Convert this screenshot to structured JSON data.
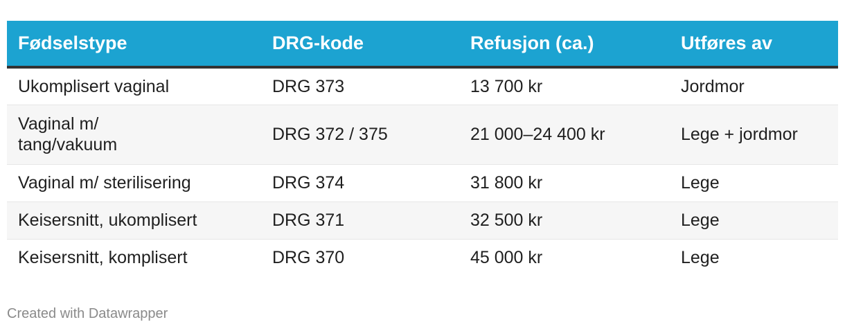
{
  "chart_data": {
    "type": "table",
    "columns": [
      "Fødselstype",
      "DRG-kode",
      "Refusjon (ca.)",
      "Utføres av"
    ],
    "rows": [
      [
        "Ukomplisert vaginal",
        "DRG 373",
        "13 700 kr",
        "Jordmor"
      ],
      [
        "Vaginal m/ tang/vakuum",
        "DRG 372 / 375",
        "21 000–24 400 kr",
        "Lege + jordmor"
      ],
      [
        "Vaginal m/ sterilisering",
        "DRG 374",
        "31 800 kr",
        "Lege"
      ],
      [
        "Keisersnitt, ukomplisert",
        "DRG 371",
        "32 500 kr",
        "Lege"
      ],
      [
        "Keisersnitt, komplisert",
        "DRG 370",
        "45 000 kr",
        "Lege"
      ]
    ]
  },
  "colors": {
    "header_background": "#1ca3d1",
    "header_text": "#ffffff",
    "header_rule": "#333333",
    "alt_row_background": "#f6f6f6",
    "footer_text": "#8a8a8a"
  },
  "footer": {
    "credit": "Created with Datawrapper"
  }
}
